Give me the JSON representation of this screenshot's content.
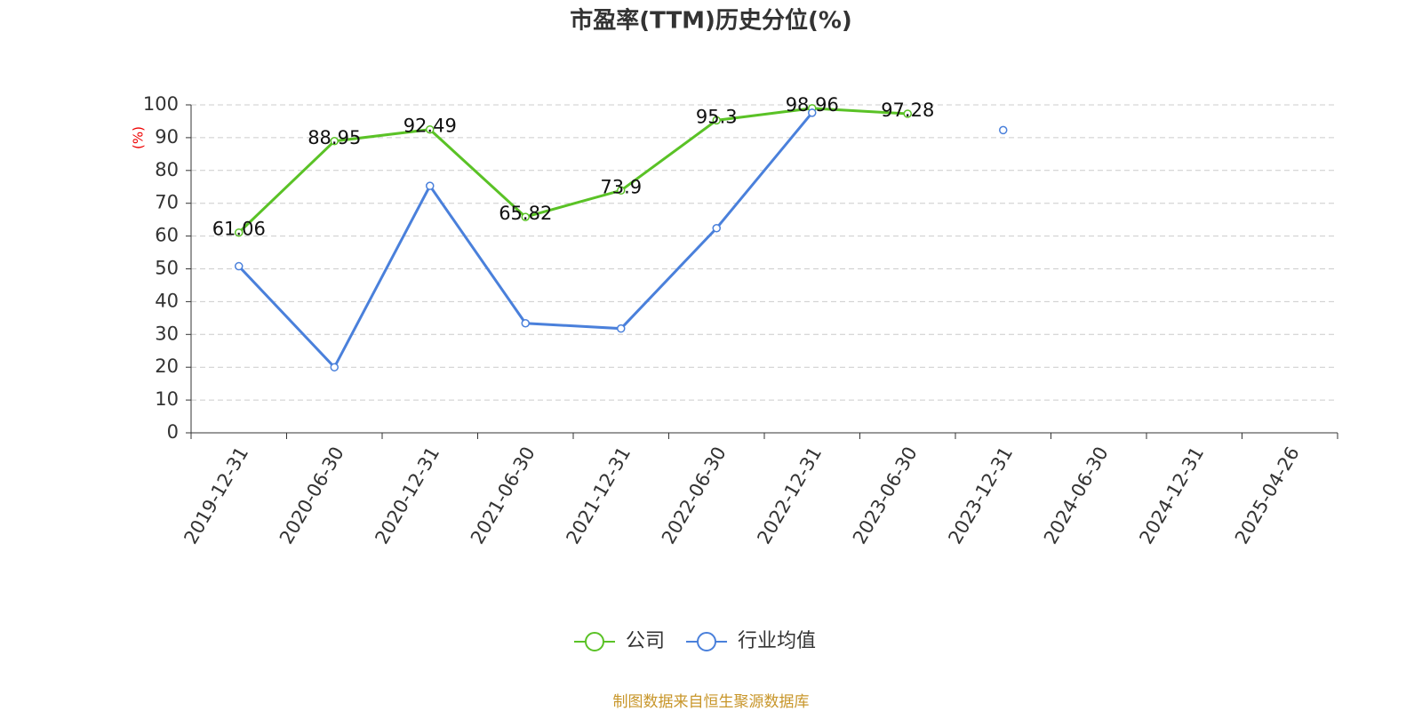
{
  "chart_data": {
    "type": "line",
    "title": "市盈率(TTM)历史分位(%)",
    "y_label": "(%)",
    "source": "制图数据来自恒生聚源数据库",
    "categories": [
      "2019-12-31",
      "2020-06-30",
      "2020-12-31",
      "2021-06-30",
      "2021-12-31",
      "2022-06-30",
      "2022-12-31",
      "2023-06-30",
      "2023-12-31",
      "2024-06-30",
      "2024-12-31",
      "2025-04-26"
    ],
    "series": [
      {
        "name": "公司",
        "color": "#5ac226",
        "values": [
          61.06,
          88.95,
          92.49,
          65.82,
          73.9,
          95.3,
          98.96,
          97.28,
          null,
          null,
          null,
          null
        ],
        "show_labels": true
      },
      {
        "name": "行业均值",
        "color": "#4a80db",
        "values": [
          50.8,
          20.0,
          75.3,
          33.4,
          31.8,
          62.4,
          97.6,
          null,
          92.3,
          null,
          null,
          null
        ],
        "show_labels": false
      }
    ],
    "ylim": [
      0,
      100
    ],
    "yticks": [
      0,
      10,
      20,
      30,
      40,
      50,
      60,
      70,
      80,
      90,
      100
    ],
    "grid": true
  }
}
